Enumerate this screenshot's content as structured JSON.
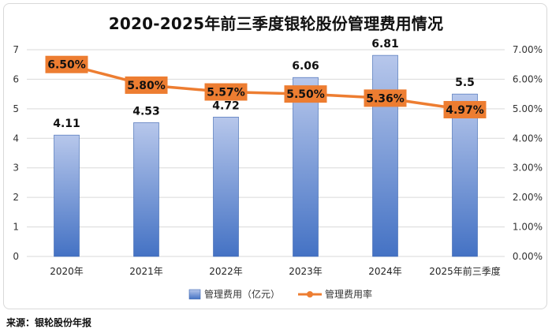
{
  "source": "来源：银轮股份年报",
  "chart_data": {
    "type": "bar",
    "title": "2020-2025年前三季度银轮股份管理费用情况",
    "categories": [
      "2020年",
      "2021年",
      "2022年",
      "2023年",
      "2024年",
      "2025年前三季度"
    ],
    "series": [
      {
        "name": "管理费用（亿元）",
        "type": "bar",
        "axis": "left",
        "values": [
          4.11,
          4.53,
          4.72,
          6.06,
          6.81,
          5.5
        ],
        "value_labels": [
          "4.11",
          "4.53",
          "4.72",
          "6.06",
          "6.81",
          "5.5"
        ]
      },
      {
        "name": "管理费用率",
        "type": "line",
        "axis": "right",
        "values": [
          6.5,
          5.8,
          5.57,
          5.5,
          5.36,
          4.97
        ],
        "value_labels": [
          "6.50%",
          "5.80%",
          "5.57%",
          "5.50%",
          "5.36%",
          "4.97%"
        ]
      }
    ],
    "ylim_left": [
      0,
      7
    ],
    "yticks_left": [
      "0",
      "1",
      "2",
      "3",
      "4",
      "5",
      "6",
      "7"
    ],
    "ylim_right": [
      0,
      7
    ],
    "yticks_right": [
      "0.00%",
      "1.00%",
      "2.00%",
      "3.00%",
      "4.00%",
      "5.00%",
      "6.00%",
      "7.00%"
    ],
    "grid": true,
    "legend_position": "bottom",
    "colors": {
      "bar_top": "#b7c7eb",
      "bar_bottom": "#4472c4",
      "line": "#ed7d31",
      "rate_label_bg": "#ed7d31",
      "grid": "#d9d9d9"
    }
  }
}
